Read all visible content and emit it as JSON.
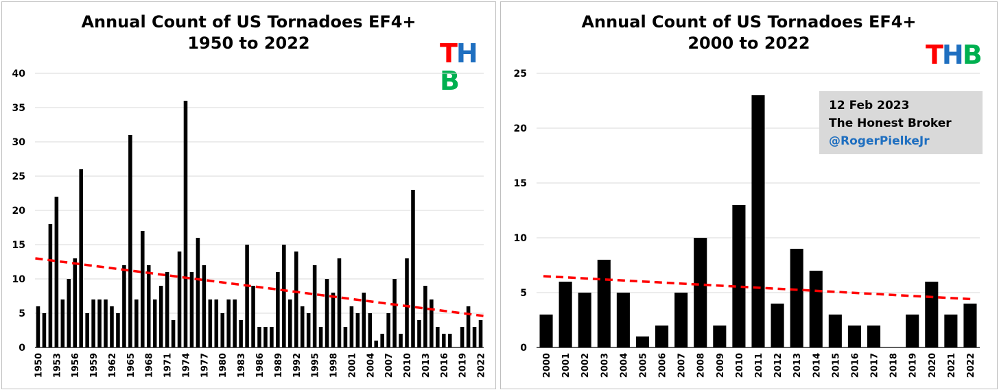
{
  "colors": {
    "bar": "#000000",
    "trend": "#ff0000",
    "grid": "#d9d9d9",
    "logo_t": "#ff0000",
    "logo_h": "#1f6fc0",
    "logo_b": "#00b050",
    "handle": "#1f6fc0",
    "note_bg": "#d9d9d9"
  },
  "logo": {
    "t": "T",
    "h": "H",
    "b": "B"
  },
  "annotation": {
    "date": "12 Feb 2023",
    "source": "The Honest Broker",
    "handle": "@RogerPielkeJr"
  },
  "chart_data": [
    {
      "type": "bar",
      "title": "Annual Count of US Tornadoes EF4+",
      "subtitle": "1950 to 2022",
      "xlabel": "",
      "ylabel": "",
      "ylim": [
        0,
        40
      ],
      "yticks": [
        0,
        5,
        10,
        15,
        20,
        25,
        30,
        35,
        40
      ],
      "grid": true,
      "categories": [
        1950,
        1951,
        1952,
        1953,
        1954,
        1955,
        1956,
        1957,
        1958,
        1959,
        1960,
        1961,
        1962,
        1963,
        1964,
        1965,
        1966,
        1967,
        1968,
        1969,
        1970,
        1971,
        1972,
        1973,
        1974,
        1975,
        1976,
        1977,
        1978,
        1979,
        1980,
        1981,
        1982,
        1983,
        1984,
        1985,
        1986,
        1987,
        1988,
        1989,
        1990,
        1991,
        1992,
        1993,
        1994,
        1995,
        1996,
        1997,
        1998,
        1999,
        2000,
        2001,
        2002,
        2003,
        2004,
        2005,
        2006,
        2007,
        2008,
        2009,
        2010,
        2011,
        2012,
        2013,
        2014,
        2015,
        2016,
        2017,
        2018,
        2019,
        2020,
        2021,
        2022
      ],
      "tick_labels": [
        "1950",
        "1953",
        "1956",
        "1959",
        "1962",
        "1965",
        "1968",
        "1971",
        "1974",
        "1977",
        "1980",
        "1983",
        "1986",
        "1989",
        "1992",
        "1995",
        "1998",
        "2001",
        "2004",
        "2007",
        "2010",
        "2013",
        "2016",
        "2019",
        "2022"
      ],
      "values": [
        6,
        5,
        18,
        22,
        7,
        10,
        13,
        26,
        5,
        7,
        7,
        7,
        6,
        5,
        12,
        31,
        7,
        17,
        12,
        7,
        9,
        11,
        4,
        14,
        36,
        11,
        16,
        12,
        7,
        7,
        5,
        7,
        7,
        4,
        15,
        9,
        3,
        3,
        3,
        11,
        15,
        7,
        14,
        6,
        5,
        12,
        3,
        10,
        8,
        13,
        3,
        6,
        5,
        8,
        5,
        1,
        2,
        5,
        10,
        2,
        13,
        23,
        4,
        9,
        7,
        3,
        2,
        2,
        0,
        3,
        6,
        3,
        4
      ],
      "trend": {
        "start": 13.0,
        "end": 4.6,
        "style": "dashed"
      }
    },
    {
      "type": "bar",
      "title": "Annual Count of US Tornadoes EF4+",
      "subtitle": "2000 to 2022",
      "xlabel": "",
      "ylabel": "",
      "ylim": [
        0,
        25
      ],
      "yticks": [
        0,
        5,
        10,
        15,
        20,
        25
      ],
      "grid": true,
      "categories": [
        "2000",
        "2001",
        "2002",
        "2003",
        "2004",
        "2005",
        "2006",
        "2007",
        "2008",
        "2009",
        "2010",
        "2011",
        "2012",
        "2013",
        "2014",
        "2015",
        "2016",
        "2017",
        "2018",
        "2019",
        "2020",
        "2021",
        "2022"
      ],
      "tick_labels": [
        "2000",
        "2001",
        "2002",
        "2003",
        "2004",
        "2005",
        "2006",
        "2007",
        "2008",
        "2009",
        "2010",
        "2011",
        "2012",
        "2013",
        "2014",
        "2015",
        "2016",
        "2017",
        "2018",
        "2019",
        "2020",
        "2021",
        "2022"
      ],
      "values": [
        3,
        6,
        5,
        8,
        5,
        1,
        2,
        5,
        10,
        2,
        13,
        23,
        4,
        9,
        7,
        3,
        2,
        2,
        0,
        3,
        6,
        3,
        4
      ],
      "trend": {
        "start": 6.5,
        "end": 4.4,
        "style": "dashed"
      }
    }
  ]
}
